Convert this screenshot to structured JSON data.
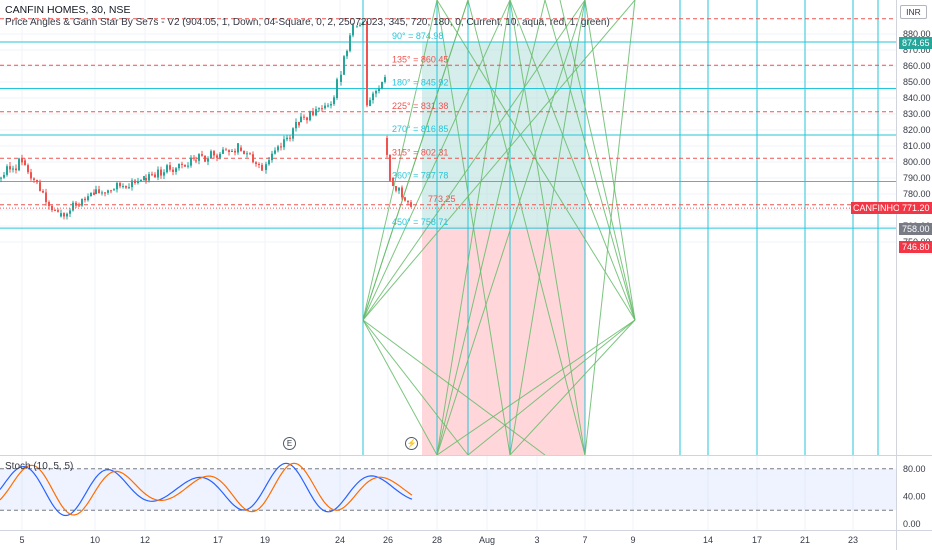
{
  "symbol_title": "CANFIN HOMES, 30, NSE",
  "indicator_label": "Price Angles & Gann Star By Se7s - V2 (904.05, 1, Down, 04-Square, 0, 2, 25072023, 345, 720, 180, 0, Current, 10, aqua, red, 1, green)",
  "currency": "INR",
  "price_axis": {
    "ticks": [
      "880.00",
      "870.00",
      "860.00",
      "850.00",
      "840.00",
      "830.00",
      "820.00",
      "810.00",
      "800.00",
      "790.00",
      "780.00",
      "770.00",
      "760.00",
      "750.00"
    ],
    "tick_values": [
      880,
      870,
      860,
      850,
      840,
      830,
      820,
      810,
      800,
      790,
      780,
      770,
      760,
      750
    ]
  },
  "price_tags": [
    {
      "text": "874.65",
      "color": "#26a69a",
      "value": 874.65
    },
    {
      "text": "CANFINHOME",
      "color": "#f23645",
      "value": 771.2
    },
    {
      "text": "771.20",
      "color": "#f23645",
      "value": 771.2
    },
    {
      "text": "758.00",
      "color": "#787b86",
      "value": 758.0
    },
    {
      "text": "746.80",
      "color": "#f23645",
      "value": 746.8
    }
  ],
  "gann_levels": [
    {
      "label": "90° = 874.98",
      "value": 874.98,
      "color": "#26c6da",
      "style": "solid"
    },
    {
      "label": "135° = 860.45",
      "value": 860.45,
      "color": "#ef5350",
      "style": "dashed"
    },
    {
      "label": "180° = 845.92",
      "value": 845.92,
      "color": "#26c6da",
      "style": "solid"
    },
    {
      "label": "225° = 831.38",
      "value": 831.38,
      "color": "#ef5350",
      "style": "dashed"
    },
    {
      "label": "270° = 816.85",
      "value": 816.85,
      "color": "#26c6da",
      "style": "solid"
    },
    {
      "label": "315° = 802.31",
      "value": 802.31,
      "color": "#ef5350",
      "style": "dashed"
    },
    {
      "label": "360° = 787.78",
      "value": 787.78,
      "color": "#26c6da",
      "style": "solid"
    },
    {
      "label": "773.25",
      "value": 773.25,
      "color": "#ef5350",
      "style": "dashed"
    },
    {
      "label": "450° = 758.71",
      "value": 758.71,
      "color": "#26c6da",
      "style": "solid"
    }
  ],
  "top_level_value": 889.52,
  "time_axis": {
    "labels": [
      "5",
      "10",
      "12",
      "17",
      "19",
      "24",
      "26",
      "28",
      "Aug",
      "3",
      "7",
      "9",
      "14",
      "17",
      "21",
      "23"
    ]
  },
  "stoch": {
    "label": "Stoch (10, 5, 5)",
    "ticks": [
      "80.00",
      "40.00",
      "0.00"
    ],
    "tick_values": [
      80,
      40,
      0
    ],
    "band_upper": 80,
    "band_lower": 20
  },
  "markers": [
    {
      "symbol": "E",
      "name": "earnings-marker"
    },
    {
      "symbol": "⚡",
      "name": "dividend-marker"
    }
  ],
  "colors": {
    "up": "#26a69a",
    "down": "#ef5350",
    "gann_cyan": "#26c6da",
    "gann_green": "#66bb6a",
    "profit_zone": "#b2dfdb",
    "loss_zone": "#ffcdd2",
    "stoch_k": "#2962ff",
    "stoch_d": "#ff6d00"
  }
}
